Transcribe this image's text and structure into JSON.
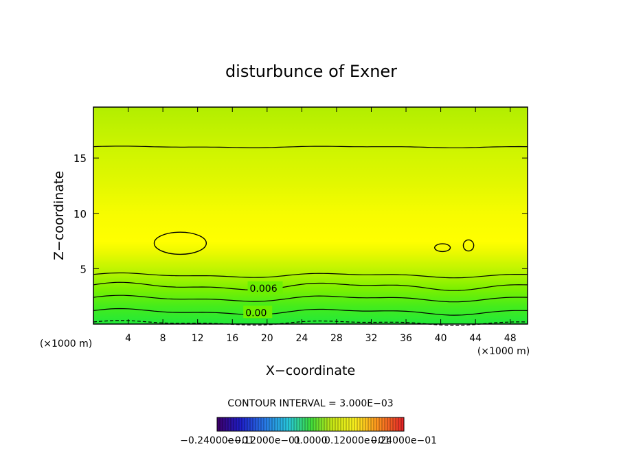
{
  "chart_data": {
    "type": "contour",
    "title": "disturbunce of Exner",
    "xlabel": "X−coordinate",
    "ylabel": "Z−coordinate",
    "x_unit_left": "(×1000 m)",
    "x_unit_right": "(×1000 m)",
    "xlim": [
      0,
      50
    ],
    "ylim": [
      0,
      19.6
    ],
    "x_ticks": [
      "4",
      "8",
      "12",
      "16",
      "20",
      "24",
      "28",
      "32",
      "36",
      "40",
      "44",
      "48"
    ],
    "x_tick_values": [
      4,
      8,
      12,
      16,
      20,
      24,
      28,
      32,
      36,
      40,
      44,
      48
    ],
    "y_ticks": [
      "5",
      "10",
      "15"
    ],
    "y_tick_values": [
      5,
      10,
      15
    ],
    "contour_labels": [
      {
        "text": "0.006",
        "x": 18,
        "z": 3.3
      },
      {
        "text": "0.00",
        "x": 17.5,
        "z": 1.1
      }
    ],
    "contour_levels_z": [
      {
        "z": 16.0,
        "style": "solid",
        "wave": 0.05
      },
      {
        "z": 4.4,
        "style": "solid",
        "wave": 0.15
      },
      {
        "z": 3.4,
        "style": "solid",
        "wave": 0.25
      },
      {
        "z": 2.3,
        "style": "solid",
        "wave": 0.2
      },
      {
        "z": 1.1,
        "style": "solid",
        "wave": 0.2
      },
      {
        "z": 0.1,
        "style": "dashed",
        "wave": 0.15
      }
    ],
    "closed_contours": [
      {
        "cx": 10.0,
        "cz": 7.3,
        "rx": 3.0,
        "rz": 1.0
      },
      {
        "cx": 40.2,
        "cz": 6.9,
        "rx": 0.9,
        "rz": 0.35
      },
      {
        "cx": 43.2,
        "cz": 7.1,
        "rx": 0.6,
        "rz": 0.5
      }
    ],
    "colors": {
      "bottom": "#22e83a",
      "low": "#6cf000",
      "mid": "#c8f200",
      "peak": "#ffff00",
      "top": "#b6f000"
    },
    "contour_interval": "CONTOUR INTERVAL = 3.000E−03",
    "colorbar_labels": [
      "−0.24000e−01",
      "−0.12000e−01",
      "0.0000",
      "0.12000e−01",
      "0.24000e−01"
    ]
  }
}
